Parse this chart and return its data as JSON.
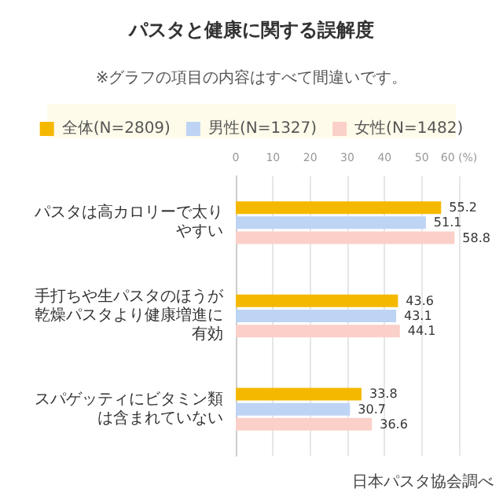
{
  "chart_data": {
    "type": "bar",
    "orientation": "horizontal",
    "title": "パスタと健康に関する誤解度",
    "subtitle": "※グラフの項目の内容はすべて間違いです。",
    "categories": [
      "パスタは高カロリーで太りやすい",
      "手打ちや生パスタのほうが乾燥パスタより健康増進に有効",
      "スパゲッティにビタミン類は含まれていない"
    ],
    "series": [
      {
        "name": "全体(N=2809)",
        "color": "#f5b800",
        "values": [
          55.2,
          43.6,
          33.8
        ]
      },
      {
        "name": "男性(N=1327)",
        "color": "#bed4f5",
        "values": [
          51.1,
          43.1,
          30.7
        ]
      },
      {
        "name": "女性(N=1482)",
        "color": "#fbd0c8",
        "values": [
          58.8,
          44.1,
          36.6
        ]
      }
    ],
    "xlim": [
      0,
      60
    ],
    "xticks": [
      0,
      10,
      20,
      30,
      40,
      50,
      {
        "value": 60,
        "label": "60 (%)"
      }
    ],
    "grid": "x",
    "legend": "top",
    "data_labels": true,
    "annotations": [
      "日本パスタ協会調べ"
    ]
  }
}
